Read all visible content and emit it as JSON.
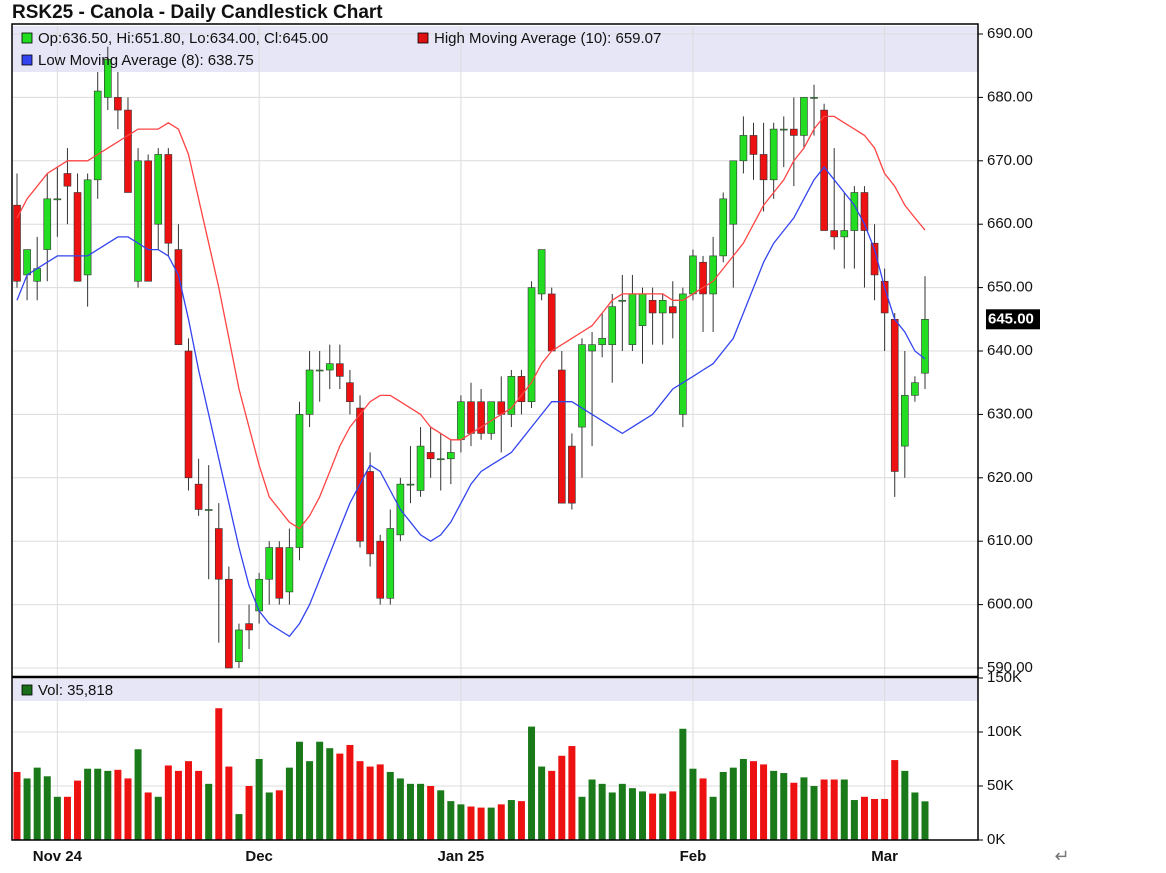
{
  "chart_data": [
    {
      "type": "candlestick",
      "title": "RSK25 - Canola - Daily Candlestick Chart",
      "ohlc_legend": "Op:636.50, Hi:651.80, Lo:634.00, Cl:645.00",
      "categories": [
        null,
        null,
        null,
        null,
        "Nov 24",
        null,
        null,
        null,
        null,
        null,
        null,
        null,
        null,
        null,
        null,
        null,
        null,
        null,
        null,
        null,
        null,
        null,
        null,
        null,
        "Dec",
        null,
        null,
        null,
        null,
        null,
        null,
        null,
        null,
        null,
        null,
        null,
        null,
        null,
        null,
        null,
        null,
        null,
        null,
        null,
        "Jan 25",
        null,
        null,
        null,
        null,
        null,
        null,
        null,
        null,
        null,
        null,
        null,
        null,
        null,
        null,
        null,
        null,
        null,
        null,
        null,
        null,
        null,
        null,
        "Feb",
        null,
        null,
        null,
        null,
        null,
        null,
        null,
        null,
        null,
        null,
        null,
        null,
        null,
        null,
        null,
        null,
        null,
        null,
        "Mar",
        null,
        null,
        null,
        null
      ],
      "open": [
        663,
        652,
        651,
        656,
        664,
        668,
        665,
        652,
        667,
        680,
        680,
        678,
        651,
        670,
        660,
        671,
        656,
        640,
        619,
        615,
        612,
        604,
        591,
        597,
        599,
        604,
        609,
        602,
        609,
        630,
        637,
        637,
        638,
        635,
        631,
        621,
        610,
        601,
        611,
        619,
        618,
        624,
        623,
        623,
        626,
        632,
        632,
        627,
        632,
        630,
        636,
        632,
        649,
        649,
        637,
        625,
        628,
        640,
        641,
        641,
        648,
        641,
        644,
        648,
        646,
        647,
        630,
        649,
        654,
        649,
        655,
        660,
        670,
        674,
        671,
        667,
        675,
        675,
        674,
        680,
        678,
        659,
        658,
        659,
        665,
        657,
        651,
        645,
        625,
        633,
        636.5
      ],
      "high": [
        668,
        656,
        658,
        668,
        669,
        672,
        668,
        668,
        684,
        688,
        684,
        680,
        672,
        671,
        672,
        672,
        660,
        642,
        623,
        622,
        616,
        606,
        597,
        600,
        605,
        610,
        610,
        612,
        632,
        640,
        640,
        641,
        641,
        637,
        633,
        624,
        611,
        615,
        620,
        625,
        628,
        628,
        627,
        626,
        633,
        635,
        634,
        632,
        636,
        637,
        637,
        651,
        656,
        650,
        640,
        627,
        642,
        643,
        646,
        649,
        652,
        652,
        650,
        650,
        649,
        651,
        650,
        656,
        655,
        658,
        665,
        670,
        677,
        676,
        676,
        676,
        677,
        680,
        680,
        682,
        679,
        672,
        665,
        666,
        666,
        660,
        653,
        646,
        640,
        636,
        651.8
      ],
      "low": [
        650,
        648,
        648,
        651,
        658,
        660,
        651,
        647,
        664,
        678,
        675,
        665,
        650,
        651,
        656,
        655,
        641,
        618,
        614,
        604,
        594,
        590,
        590,
        593,
        597,
        600,
        600,
        600,
        607,
        628,
        632,
        634,
        634,
        630,
        609,
        606,
        600,
        600,
        610,
        616,
        617,
        620,
        618,
        619,
        624,
        625,
        626,
        626,
        624,
        628,
        630,
        631,
        648,
        640,
        616,
        615,
        620,
        625,
        639,
        635,
        640,
        640,
        638,
        641,
        641,
        642,
        628,
        648,
        643,
        643,
        654,
        650,
        668,
        667,
        662,
        664,
        669,
        666,
        672,
        674,
        659,
        656,
        653,
        653,
        650,
        648,
        640,
        617,
        620,
        632,
        634
      ],
      "close": [
        651,
        656,
        653,
        664,
        664,
        666,
        651,
        667,
        681,
        686,
        678,
        665,
        670,
        651,
        671,
        657,
        641,
        620,
        615,
        615,
        604,
        590,
        596,
        596,
        604,
        609,
        601,
        609,
        630,
        637,
        637,
        638,
        636,
        632,
        610,
        608,
        601,
        612,
        619,
        619,
        625,
        623,
        623,
        624,
        632,
        627,
        627,
        632,
        630,
        636,
        632,
        650,
        656,
        640,
        616,
        616,
        641,
        641,
        642,
        647,
        648,
        649,
        649,
        646,
        648,
        646,
        649,
        655,
        649,
        655,
        664,
        670,
        674,
        671,
        667,
        675,
        675,
        674,
        680,
        680,
        659,
        658,
        659,
        665,
        659,
        652,
        646,
        621,
        633,
        635,
        645
      ],
      "up_color": "#22dd22",
      "down_color": "#ee1111",
      "series": [
        {
          "name": "High Moving Average (10): 659.07",
          "color": "#ff4444",
          "values": [
            661,
            664,
            666,
            668,
            669,
            670,
            670,
            670,
            671,
            672,
            673,
            674,
            675,
            675,
            675,
            676,
            675,
            671,
            664,
            657,
            650,
            642,
            634,
            628,
            622,
            617,
            615,
            613,
            612,
            614,
            617,
            621,
            625,
            628,
            630,
            632,
            633,
            633,
            632,
            631,
            630,
            628,
            627,
            626,
            626,
            627,
            628,
            629,
            630,
            631,
            633,
            635,
            638,
            640,
            641,
            642,
            643,
            644,
            646,
            648,
            649,
            649,
            649,
            649,
            649,
            648,
            648,
            649,
            650,
            651,
            653,
            655,
            657,
            660,
            663,
            665,
            667,
            670,
            672,
            675,
            677,
            677,
            676,
            675,
            674,
            672,
            668,
            666,
            663,
            661,
            659.07
          ]
        },
        {
          "name": "Low Moving Average (8): 638.75",
          "color": "#3344ee",
          "values": [
            648,
            652,
            653,
            654,
            655,
            655,
            655,
            655,
            656,
            657,
            658,
            658,
            657,
            656,
            656,
            655,
            652,
            645,
            637,
            630,
            623,
            616,
            609,
            603,
            599,
            597,
            596,
            595,
            597,
            600,
            604,
            608,
            612,
            616,
            619,
            622,
            621,
            618,
            615,
            613,
            611,
            610,
            611,
            613,
            616,
            619,
            621,
            622,
            623,
            624,
            626,
            628,
            630,
            632,
            632,
            632,
            631,
            630,
            629,
            628,
            627,
            628,
            629,
            630,
            632,
            634,
            635,
            636,
            637,
            638,
            640,
            642,
            646,
            650,
            654,
            657,
            659,
            661,
            664,
            667,
            669,
            667,
            665,
            663,
            660,
            656,
            650,
            645,
            643,
            640,
            638.75
          ]
        }
      ],
      "ylim": [
        590,
        690
      ],
      "yticks": [
        {
          "value": 590,
          "label": "590.00"
        },
        {
          "value": 600,
          "label": "600.00"
        },
        {
          "value": 610,
          "label": "610.00"
        },
        {
          "value": 620,
          "label": "620.00"
        },
        {
          "value": 630,
          "label": "630.00"
        },
        {
          "value": 640,
          "label": "640.00"
        },
        {
          "value": 650,
          "label": "650.00"
        },
        {
          "value": 660,
          "label": "660.00"
        },
        {
          "value": 670,
          "label": "670.00"
        },
        {
          "value": 680,
          "label": "680.00"
        },
        {
          "value": 690,
          "label": "690.00"
        }
      ],
      "last_price": {
        "value": 645,
        "label": "645.00"
      },
      "grid": true
    },
    {
      "type": "bar",
      "legend": "Vol: 35,818",
      "legend_color": "#1a6e1a",
      "values": [
        63000,
        57000,
        67000,
        59000,
        40000,
        40000,
        55000,
        66000,
        66000,
        64000,
        65000,
        57000,
        84000,
        44000,
        40000,
        69000,
        64000,
        73000,
        64000,
        52000,
        122000,
        68000,
        24000,
        50000,
        75000,
        44000,
        46000,
        67000,
        91000,
        73000,
        91000,
        85000,
        80000,
        88000,
        73000,
        68000,
        70000,
        63000,
        57000,
        52000,
        52000,
        50000,
        46000,
        36000,
        33000,
        31000,
        30000,
        30000,
        33000,
        37000,
        36000,
        105000,
        68000,
        64000,
        78000,
        87000,
        40000,
        56000,
        52000,
        44000,
        52000,
        48000,
        45000,
        43000,
        43000,
        45000,
        103000,
        66000,
        57000,
        40000,
        63000,
        67000,
        75000,
        73000,
        70000,
        64000,
        62000,
        53000,
        58000,
        50000,
        56000,
        56000,
        56000,
        37000,
        40000,
        38000,
        38000,
        74000,
        64000,
        44000,
        35818
      ],
      "up_color": "#1a7a1a",
      "down_color": "#ee1111",
      "ylim": [
        0,
        150000
      ],
      "yticks": [
        {
          "value": 0,
          "label": "0K"
        },
        {
          "value": 50000,
          "label": "50K"
        },
        {
          "value": 100000,
          "label": "100K"
        },
        {
          "value": 150000,
          "label": "150K"
        }
      ],
      "grid": true
    }
  ],
  "return_symbol": "↵"
}
